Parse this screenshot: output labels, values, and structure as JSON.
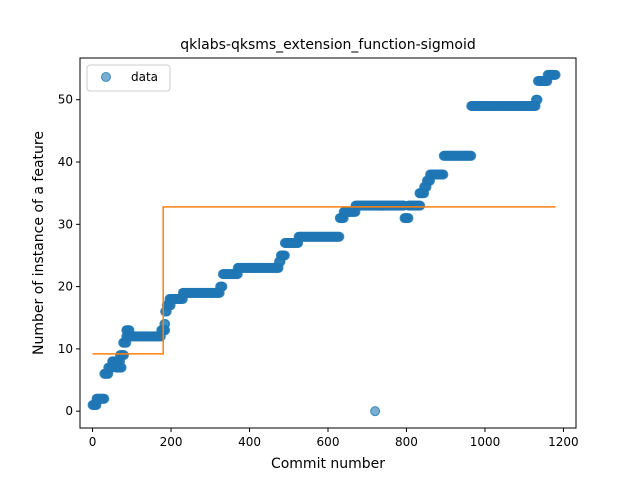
{
  "chart_data": {
    "type": "scatter",
    "title": "qklabs-qksms_extension_function-sigmoid",
    "xlabel": "Commit number",
    "ylabel": "Number of instance of a feature",
    "xlim": [
      -32,
      1232
    ],
    "ylim": [
      -2.7,
      56.7
    ],
    "xticks": [
      0,
      200,
      400,
      600,
      800,
      1000,
      1200
    ],
    "yticks": [
      0,
      10,
      20,
      30,
      40,
      50
    ],
    "grid": false,
    "legend": {
      "position": "top-left",
      "entries": [
        "data"
      ]
    },
    "colors": {
      "data": "#1f77b4",
      "fit": "#ff7f0e"
    },
    "series": [
      {
        "name": "data",
        "kind": "scatter",
        "segments": [
          {
            "x_start": 0,
            "x_end": 10,
            "y": 1
          },
          {
            "x_start": 10,
            "x_end": 30,
            "y": 2
          },
          {
            "x_start": 30,
            "x_end": 40,
            "y": 6
          },
          {
            "x_start": 40,
            "x_end": 50,
            "y": 7
          },
          {
            "x_start": 50,
            "x_end": 70,
            "y": 8
          },
          {
            "x_start": 60,
            "x_end": 75,
            "y": 7
          },
          {
            "x_start": 70,
            "x_end": 80,
            "y": 9
          },
          {
            "x_start": 78,
            "x_end": 86,
            "y": 11
          },
          {
            "x_start": 86,
            "x_end": 95,
            "y": 13
          },
          {
            "x_start": 86,
            "x_end": 175,
            "y": 12
          },
          {
            "x_start": 175,
            "x_end": 185,
            "y": 13
          },
          {
            "x_start": 183,
            "x_end": 185,
            "y": 14
          },
          {
            "x_start": 185,
            "x_end": 189,
            "y": 16
          },
          {
            "x_start": 189,
            "x_end": 200,
            "y": 17
          },
          {
            "x_start": 196,
            "x_end": 230,
            "y": 18
          },
          {
            "x_start": 230,
            "x_end": 325,
            "y": 19
          },
          {
            "x_start": 325,
            "x_end": 332,
            "y": 20
          },
          {
            "x_start": 332,
            "x_end": 370,
            "y": 22
          },
          {
            "x_start": 370,
            "x_end": 475,
            "y": 23
          },
          {
            "x_start": 475,
            "x_end": 480,
            "y": 24
          },
          {
            "x_start": 480,
            "x_end": 490,
            "y": 25
          },
          {
            "x_start": 490,
            "x_end": 525,
            "y": 27
          },
          {
            "x_start": 525,
            "x_end": 630,
            "y": 28
          },
          {
            "x_start": 630,
            "x_end": 640,
            "y": 31
          },
          {
            "x_start": 640,
            "x_end": 670,
            "y": 32
          },
          {
            "x_start": 670,
            "x_end": 795,
            "y": 33
          },
          {
            "x_start": 795,
            "x_end": 805,
            "y": 31
          },
          {
            "x_start": 805,
            "x_end": 835,
            "y": 33
          },
          {
            "x_start": 833,
            "x_end": 845,
            "y": 35
          },
          {
            "x_start": 845,
            "x_end": 852,
            "y": 36
          },
          {
            "x_start": 852,
            "x_end": 860,
            "y": 37
          },
          {
            "x_start": 860,
            "x_end": 895,
            "y": 38
          },
          {
            "x_start": 895,
            "x_end": 965,
            "y": 41
          },
          {
            "x_start": 965,
            "x_end": 1130,
            "y": 49
          },
          {
            "x_start": 1130,
            "x_end": 1135,
            "y": 50
          },
          {
            "x_start": 1135,
            "x_end": 1160,
            "y": 53
          },
          {
            "x_start": 1160,
            "x_end": 1180,
            "y": 54
          }
        ],
        "points": [
          {
            "x": 720,
            "y": 0
          }
        ]
      },
      {
        "kind": "line",
        "x": [
          0,
          180,
          180,
          1180
        ],
        "y": [
          9.2,
          9.2,
          32.8,
          32.8
        ]
      }
    ]
  }
}
